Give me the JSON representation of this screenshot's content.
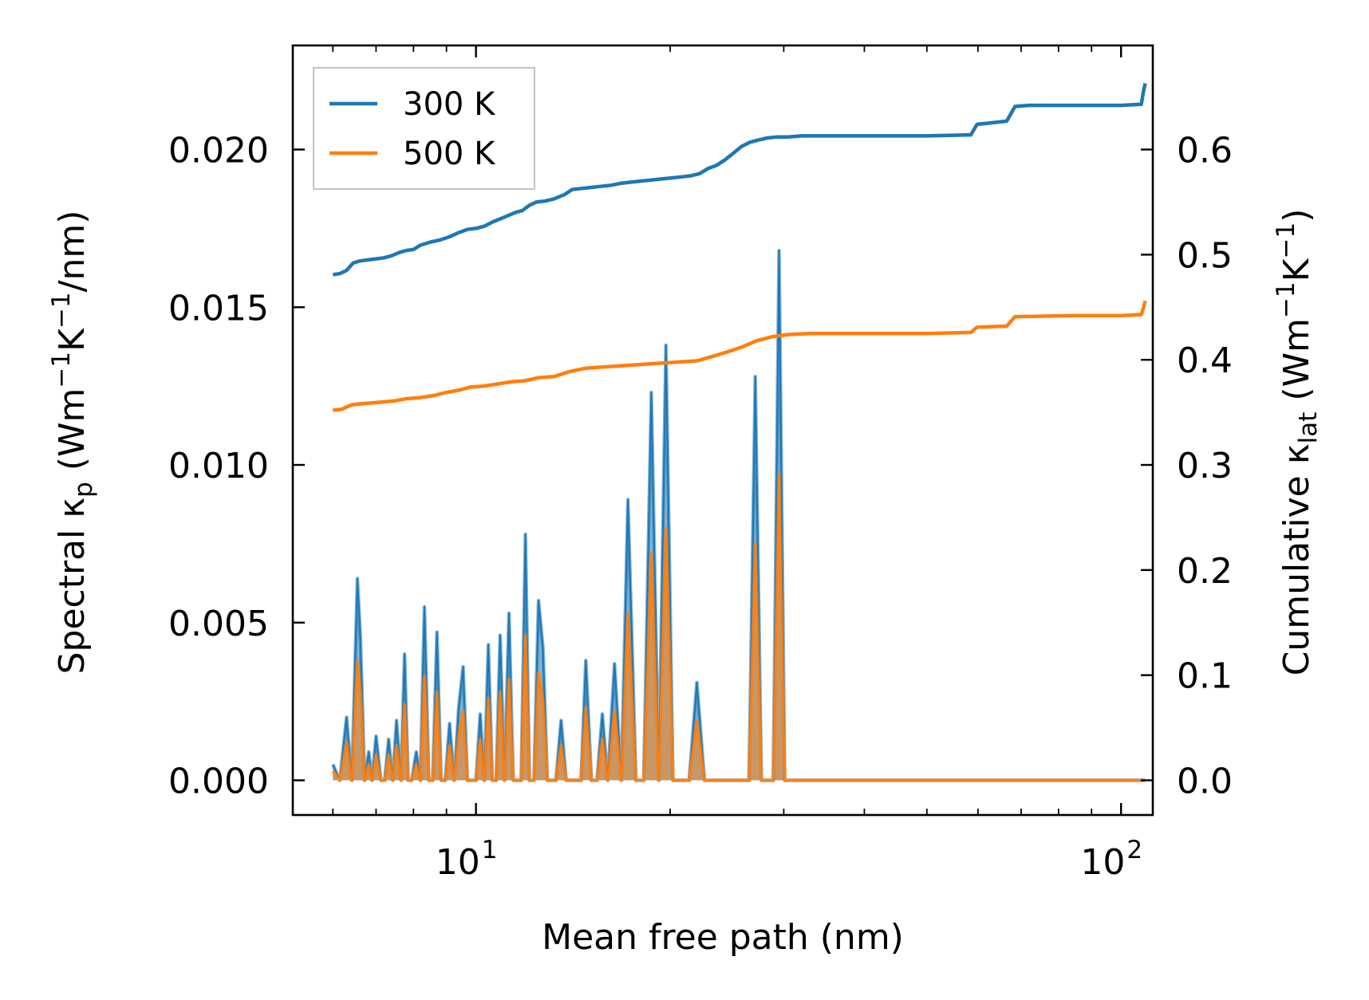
{
  "chart_data": {
    "type": "line",
    "title": "",
    "xlabel": "Mean free path (nm)",
    "ylabel_left": {
      "main": "Spectral κ",
      "sub": "p",
      "unit_open": " (Wm",
      "sup1": "−1",
      "unit_mid": "K",
      "sup2": "−1",
      "unit_close": "/nm)"
    },
    "ylabel_right": {
      "main": "Cumulative κ",
      "sub": "lat",
      "unit_open": " (Wm",
      "sup1": "−1",
      "unit_mid": "K",
      "sup2": "−1",
      "unit_close": ")"
    },
    "xscale": "log",
    "xlim": [
      5.2,
      112
    ],
    "ylim_left": [
      -0.0011,
      0.0233
    ],
    "ylim_right": [
      -0.033,
      0.699
    ],
    "x_ticks": [
      {
        "value": 10,
        "base": "10",
        "exp": "1"
      },
      {
        "value": 100,
        "base": "10",
        "exp": "2"
      }
    ],
    "y_left_ticks": [
      {
        "value": 0.0,
        "label": "0.000"
      },
      {
        "value": 0.005,
        "label": "0.005"
      },
      {
        "value": 0.01,
        "label": "0.010"
      },
      {
        "value": 0.015,
        "label": "0.015"
      },
      {
        "value": 0.02,
        "label": "0.020"
      }
    ],
    "y_right_ticks": [
      {
        "value": 0.0,
        "label": "0.0"
      },
      {
        "value": 0.1,
        "label": "0.1"
      },
      {
        "value": 0.2,
        "label": "0.2"
      },
      {
        "value": 0.3,
        "label": "0.3"
      },
      {
        "value": 0.4,
        "label": "0.4"
      },
      {
        "value": 0.5,
        "label": "0.5"
      },
      {
        "value": 0.6,
        "label": "0.6"
      }
    ],
    "legend": {
      "position": "upper-left",
      "entries": [
        {
          "label": "300 K",
          "color": "#1f77b4"
        },
        {
          "label": "500 K",
          "color": "#ff7f0e"
        }
      ]
    },
    "spectral_x": [
      6.0,
      6.15,
      6.3,
      6.42,
      6.55,
      6.62,
      6.72,
      6.82,
      6.9,
      7.0,
      7.12,
      7.22,
      7.32,
      7.43,
      7.53,
      7.65,
      7.75,
      7.85,
      7.95,
      8.08,
      8.2,
      8.32,
      8.45,
      8.57,
      8.7,
      8.83,
      8.96,
      9.1,
      9.25,
      9.4,
      9.55,
      9.7,
      9.85,
      10.0,
      10.15,
      10.3,
      10.45,
      10.6,
      10.75,
      10.9,
      11.07,
      11.25,
      11.42,
      11.58,
      11.75,
      11.93,
      12.1,
      12.3,
      12.5,
      12.7,
      12.9,
      13.1,
      13.3,
      13.55,
      13.8,
      14.05,
      14.3,
      14.55,
      14.8,
      15.1,
      15.4,
      15.7,
      16.0,
      16.4,
      16.8,
      17.2,
      17.7,
      18.2,
      18.7,
      19.2,
      19.7,
      20.2,
      20.8,
      21.4,
      22.0,
      22.6,
      23.3,
      24.0,
      24.7,
      25.3,
      25.9,
      26.5,
      27.1,
      27.7,
      28.3,
      28.9,
      29.5,
      30.1,
      30.7,
      31.3,
      32.0,
      33.5,
      36,
      40,
      45,
      50,
      55,
      58.5,
      59.6,
      60.6,
      63.5,
      66.5,
      68.0,
      69.0,
      70.2,
      80,
      95,
      108.0,
      108.5,
      109.0
    ],
    "series": [
      {
        "name": "300 K",
        "color": "#1f77b4",
        "spectral": [
          0.0005,
          0.0,
          0.002,
          0.0,
          0.0064,
          0.0045,
          0.0,
          0.0009,
          0.0,
          0.0014,
          0.0,
          0.0,
          0.0013,
          0.0,
          0.0019,
          0.0,
          0.004,
          0.0,
          0.0,
          0.0009,
          0.0,
          0.0055,
          0.0,
          0.0,
          0.0047,
          0.0,
          0.0,
          0.0018,
          0.0,
          0.0023,
          0.0036,
          0.0,
          0.0,
          0.0,
          0.0021,
          0.0,
          0.0043,
          0.0,
          0.0,
          0.0046,
          0.0,
          0.0053,
          0.0,
          0.0,
          0.0,
          0.0078,
          0.0,
          0.0,
          0.0057,
          0.0042,
          0.0,
          0.0,
          0.0,
          0.0019,
          0.0,
          0.0,
          0.0,
          0.0,
          0.0038,
          0.0,
          0.0,
          0.0021,
          0.0,
          0.0037,
          0.0,
          0.0089,
          0.0,
          0.0,
          0.0123,
          0.0,
          0.0138,
          0.0,
          0.0,
          0.0,
          0.0031,
          0.0,
          0.0,
          0.0,
          0.0,
          0.0,
          0.0,
          0.0,
          0.0128,
          0.0,
          0.0,
          0.0,
          0.0168,
          0.0,
          0.0,
          0.0,
          0.0,
          0.0,
          0.0,
          0.0,
          0.0,
          0.0,
          0.0,
          0.0,
          0.0,
          0.0,
          0.0,
          0.0,
          0.0,
          0.0,
          0.0,
          0.0,
          0.0,
          0.0,
          0.0,
          0.0
        ],
        "cumulative": [
          {
            "x": 6.0,
            "y": 0.481
          },
          {
            "x": 6.15,
            "y": 0.482
          },
          {
            "x": 6.3,
            "y": 0.485
          },
          {
            "x": 6.45,
            "y": 0.492
          },
          {
            "x": 6.6,
            "y": 0.494
          },
          {
            "x": 6.8,
            "y": 0.495
          },
          {
            "x": 7.0,
            "y": 0.496
          },
          {
            "x": 7.2,
            "y": 0.497
          },
          {
            "x": 7.4,
            "y": 0.499
          },
          {
            "x": 7.6,
            "y": 0.502
          },
          {
            "x": 7.8,
            "y": 0.504
          },
          {
            "x": 8.0,
            "y": 0.505
          },
          {
            "x": 8.2,
            "y": 0.509
          },
          {
            "x": 8.5,
            "y": 0.512
          },
          {
            "x": 8.8,
            "y": 0.514
          },
          {
            "x": 9.1,
            "y": 0.517
          },
          {
            "x": 9.4,
            "y": 0.521
          },
          {
            "x": 9.7,
            "y": 0.524
          },
          {
            "x": 10.0,
            "y": 0.525
          },
          {
            "x": 10.3,
            "y": 0.527
          },
          {
            "x": 10.6,
            "y": 0.531
          },
          {
            "x": 10.9,
            "y": 0.534
          },
          {
            "x": 11.2,
            "y": 0.537
          },
          {
            "x": 11.5,
            "y": 0.54
          },
          {
            "x": 11.8,
            "y": 0.542
          },
          {
            "x": 12.1,
            "y": 0.547
          },
          {
            "x": 12.4,
            "y": 0.55
          },
          {
            "x": 12.8,
            "y": 0.551
          },
          {
            "x": 13.2,
            "y": 0.553
          },
          {
            "x": 13.7,
            "y": 0.557
          },
          {
            "x": 14.1,
            "y": 0.562
          },
          {
            "x": 14.6,
            "y": 0.563
          },
          {
            "x": 15.1,
            "y": 0.564
          },
          {
            "x": 15.6,
            "y": 0.565
          },
          {
            "x": 16.2,
            "y": 0.566
          },
          {
            "x": 16.8,
            "y": 0.568
          },
          {
            "x": 17.4,
            "y": 0.569
          },
          {
            "x": 18.0,
            "y": 0.57
          },
          {
            "x": 18.7,
            "y": 0.571
          },
          {
            "x": 19.4,
            "y": 0.572
          },
          {
            "x": 20.1,
            "y": 0.573
          },
          {
            "x": 20.8,
            "y": 0.574
          },
          {
            "x": 21.5,
            "y": 0.575
          },
          {
            "x": 22.2,
            "y": 0.577
          },
          {
            "x": 22.9,
            "y": 0.582
          },
          {
            "x": 23.6,
            "y": 0.585
          },
          {
            "x": 24.3,
            "y": 0.59
          },
          {
            "x": 25.0,
            "y": 0.596
          },
          {
            "x": 25.8,
            "y": 0.603
          },
          {
            "x": 26.6,
            "y": 0.607
          },
          {
            "x": 27.4,
            "y": 0.609
          },
          {
            "x": 28.3,
            "y": 0.611
          },
          {
            "x": 29.3,
            "y": 0.612
          },
          {
            "x": 30.5,
            "y": 0.612
          },
          {
            "x": 32.0,
            "y": 0.613
          },
          {
            "x": 36.0,
            "y": 0.613
          },
          {
            "x": 42.0,
            "y": 0.613
          },
          {
            "x": 50.0,
            "y": 0.613
          },
          {
            "x": 58.5,
            "y": 0.614
          },
          {
            "x": 59.8,
            "y": 0.624
          },
          {
            "x": 62.0,
            "y": 0.625
          },
          {
            "x": 66.5,
            "y": 0.627
          },
          {
            "x": 68.5,
            "y": 0.641
          },
          {
            "x": 72.0,
            "y": 0.642
          },
          {
            "x": 85.0,
            "y": 0.642
          },
          {
            "x": 100.0,
            "y": 0.642
          },
          {
            "x": 107.5,
            "y": 0.643
          },
          {
            "x": 108.3,
            "y": 0.655
          },
          {
            "x": 109.0,
            "y": 0.663
          }
        ],
        "cumulative_shown_max": 0.663
      },
      {
        "name": "500 K",
        "color": "#ff7f0e",
        "spectral": [
          0.0003,
          0.0,
          0.0012,
          0.0,
          0.0038,
          0.0027,
          0.0,
          0.0005,
          0.0,
          0.0008,
          0.0,
          0.0,
          0.0008,
          0.0,
          0.0011,
          0.0,
          0.0024,
          0.0,
          0.0,
          0.0005,
          0.0,
          0.0033,
          0.0,
          0.0,
          0.0028,
          0.0,
          0.0,
          0.0011,
          0.0,
          0.0014,
          0.0022,
          0.0,
          0.0,
          0.0,
          0.0013,
          0.0,
          0.0026,
          0.0,
          0.0,
          0.0028,
          0.0,
          0.0032,
          0.0,
          0.0,
          0.0,
          0.0046,
          0.0,
          0.0,
          0.0034,
          0.0025,
          0.0,
          0.0,
          0.0,
          0.0011,
          0.0,
          0.0,
          0.0,
          0.0,
          0.0023,
          0.0,
          0.0,
          0.0013,
          0.0,
          0.0022,
          0.0,
          0.0053,
          0.0,
          0.0,
          0.0072,
          0.0,
          0.008,
          0.0,
          0.0,
          0.0,
          0.0019,
          0.0,
          0.0,
          0.0,
          0.0,
          0.0,
          0.0,
          0.0,
          0.0075,
          0.0,
          0.0,
          0.0,
          0.0097,
          0.0,
          0.0,
          0.0,
          0.0,
          0.0,
          0.0,
          0.0,
          0.0,
          0.0,
          0.0,
          0.0,
          0.0,
          0.0,
          0.0,
          0.0,
          0.0,
          0.0,
          0.0,
          0.0,
          0.0,
          0.0,
          0.0,
          0.0
        ],
        "cumulative": [
          {
            "x": 6.0,
            "y": 0.352
          },
          {
            "x": 6.2,
            "y": 0.353
          },
          {
            "x": 6.4,
            "y": 0.357
          },
          {
            "x": 6.6,
            "y": 0.358
          },
          {
            "x": 6.9,
            "y": 0.359
          },
          {
            "x": 7.2,
            "y": 0.36
          },
          {
            "x": 7.5,
            "y": 0.361
          },
          {
            "x": 7.8,
            "y": 0.363
          },
          {
            "x": 8.2,
            "y": 0.364
          },
          {
            "x": 8.6,
            "y": 0.366
          },
          {
            "x": 9.0,
            "y": 0.369
          },
          {
            "x": 9.4,
            "y": 0.371
          },
          {
            "x": 9.8,
            "y": 0.374
          },
          {
            "x": 10.3,
            "y": 0.375
          },
          {
            "x": 10.8,
            "y": 0.377
          },
          {
            "x": 11.3,
            "y": 0.379
          },
          {
            "x": 11.9,
            "y": 0.38
          },
          {
            "x": 12.5,
            "y": 0.383
          },
          {
            "x": 13.2,
            "y": 0.384
          },
          {
            "x": 14.0,
            "y": 0.389
          },
          {
            "x": 14.8,
            "y": 0.392
          },
          {
            "x": 15.6,
            "y": 0.393
          },
          {
            "x": 16.5,
            "y": 0.394
          },
          {
            "x": 17.5,
            "y": 0.395
          },
          {
            "x": 18.5,
            "y": 0.396
          },
          {
            "x": 19.6,
            "y": 0.397
          },
          {
            "x": 20.8,
            "y": 0.398
          },
          {
            "x": 22.0,
            "y": 0.399
          },
          {
            "x": 23.2,
            "y": 0.403
          },
          {
            "x": 24.4,
            "y": 0.407
          },
          {
            "x": 25.8,
            "y": 0.412
          },
          {
            "x": 27.2,
            "y": 0.418
          },
          {
            "x": 28.8,
            "y": 0.422
          },
          {
            "x": 30.5,
            "y": 0.424
          },
          {
            "x": 33.0,
            "y": 0.425
          },
          {
            "x": 40.0,
            "y": 0.425
          },
          {
            "x": 50.0,
            "y": 0.425
          },
          {
            "x": 58.5,
            "y": 0.426
          },
          {
            "x": 59.8,
            "y": 0.431
          },
          {
            "x": 66.5,
            "y": 0.432
          },
          {
            "x": 68.5,
            "y": 0.441
          },
          {
            "x": 85.0,
            "y": 0.442
          },
          {
            "x": 100.0,
            "y": 0.442
          },
          {
            "x": 107.5,
            "y": 0.443
          },
          {
            "x": 108.5,
            "y": 0.451
          },
          {
            "x": 109.0,
            "y": 0.456
          }
        ],
        "cumulative_shown_max": 0.456
      }
    ],
    "grid": false
  }
}
